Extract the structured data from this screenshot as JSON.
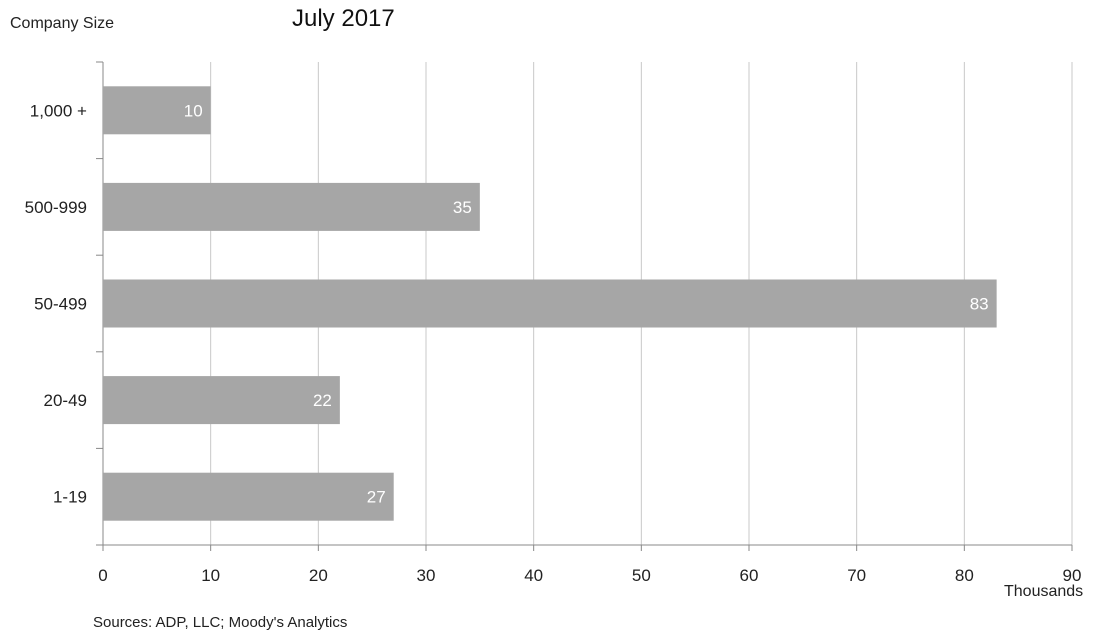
{
  "chart_data": {
    "type": "bar",
    "orientation": "horizontal",
    "title": "July 2017",
    "ylabel": "Company Size",
    "xlabel_unit": "Thousands",
    "categories": [
      "1,000 +",
      "500-999",
      "50-499",
      "20-49",
      "1-19"
    ],
    "values": [
      10,
      35,
      83,
      22,
      27
    ],
    "data_labels": [
      "10",
      "35",
      "83",
      "22",
      "27"
    ],
    "xlim": [
      0,
      90
    ],
    "xticks": [
      0,
      10,
      20,
      30,
      40,
      50,
      60,
      70,
      80,
      90
    ],
    "grid": "vertical",
    "legend": "none",
    "bar_color": "#a6a6a6",
    "grid_color": "#c8c8c8",
    "label_color": "#ffffff"
  },
  "source": "Sources: ADP, LLC; Moody's Analytics"
}
